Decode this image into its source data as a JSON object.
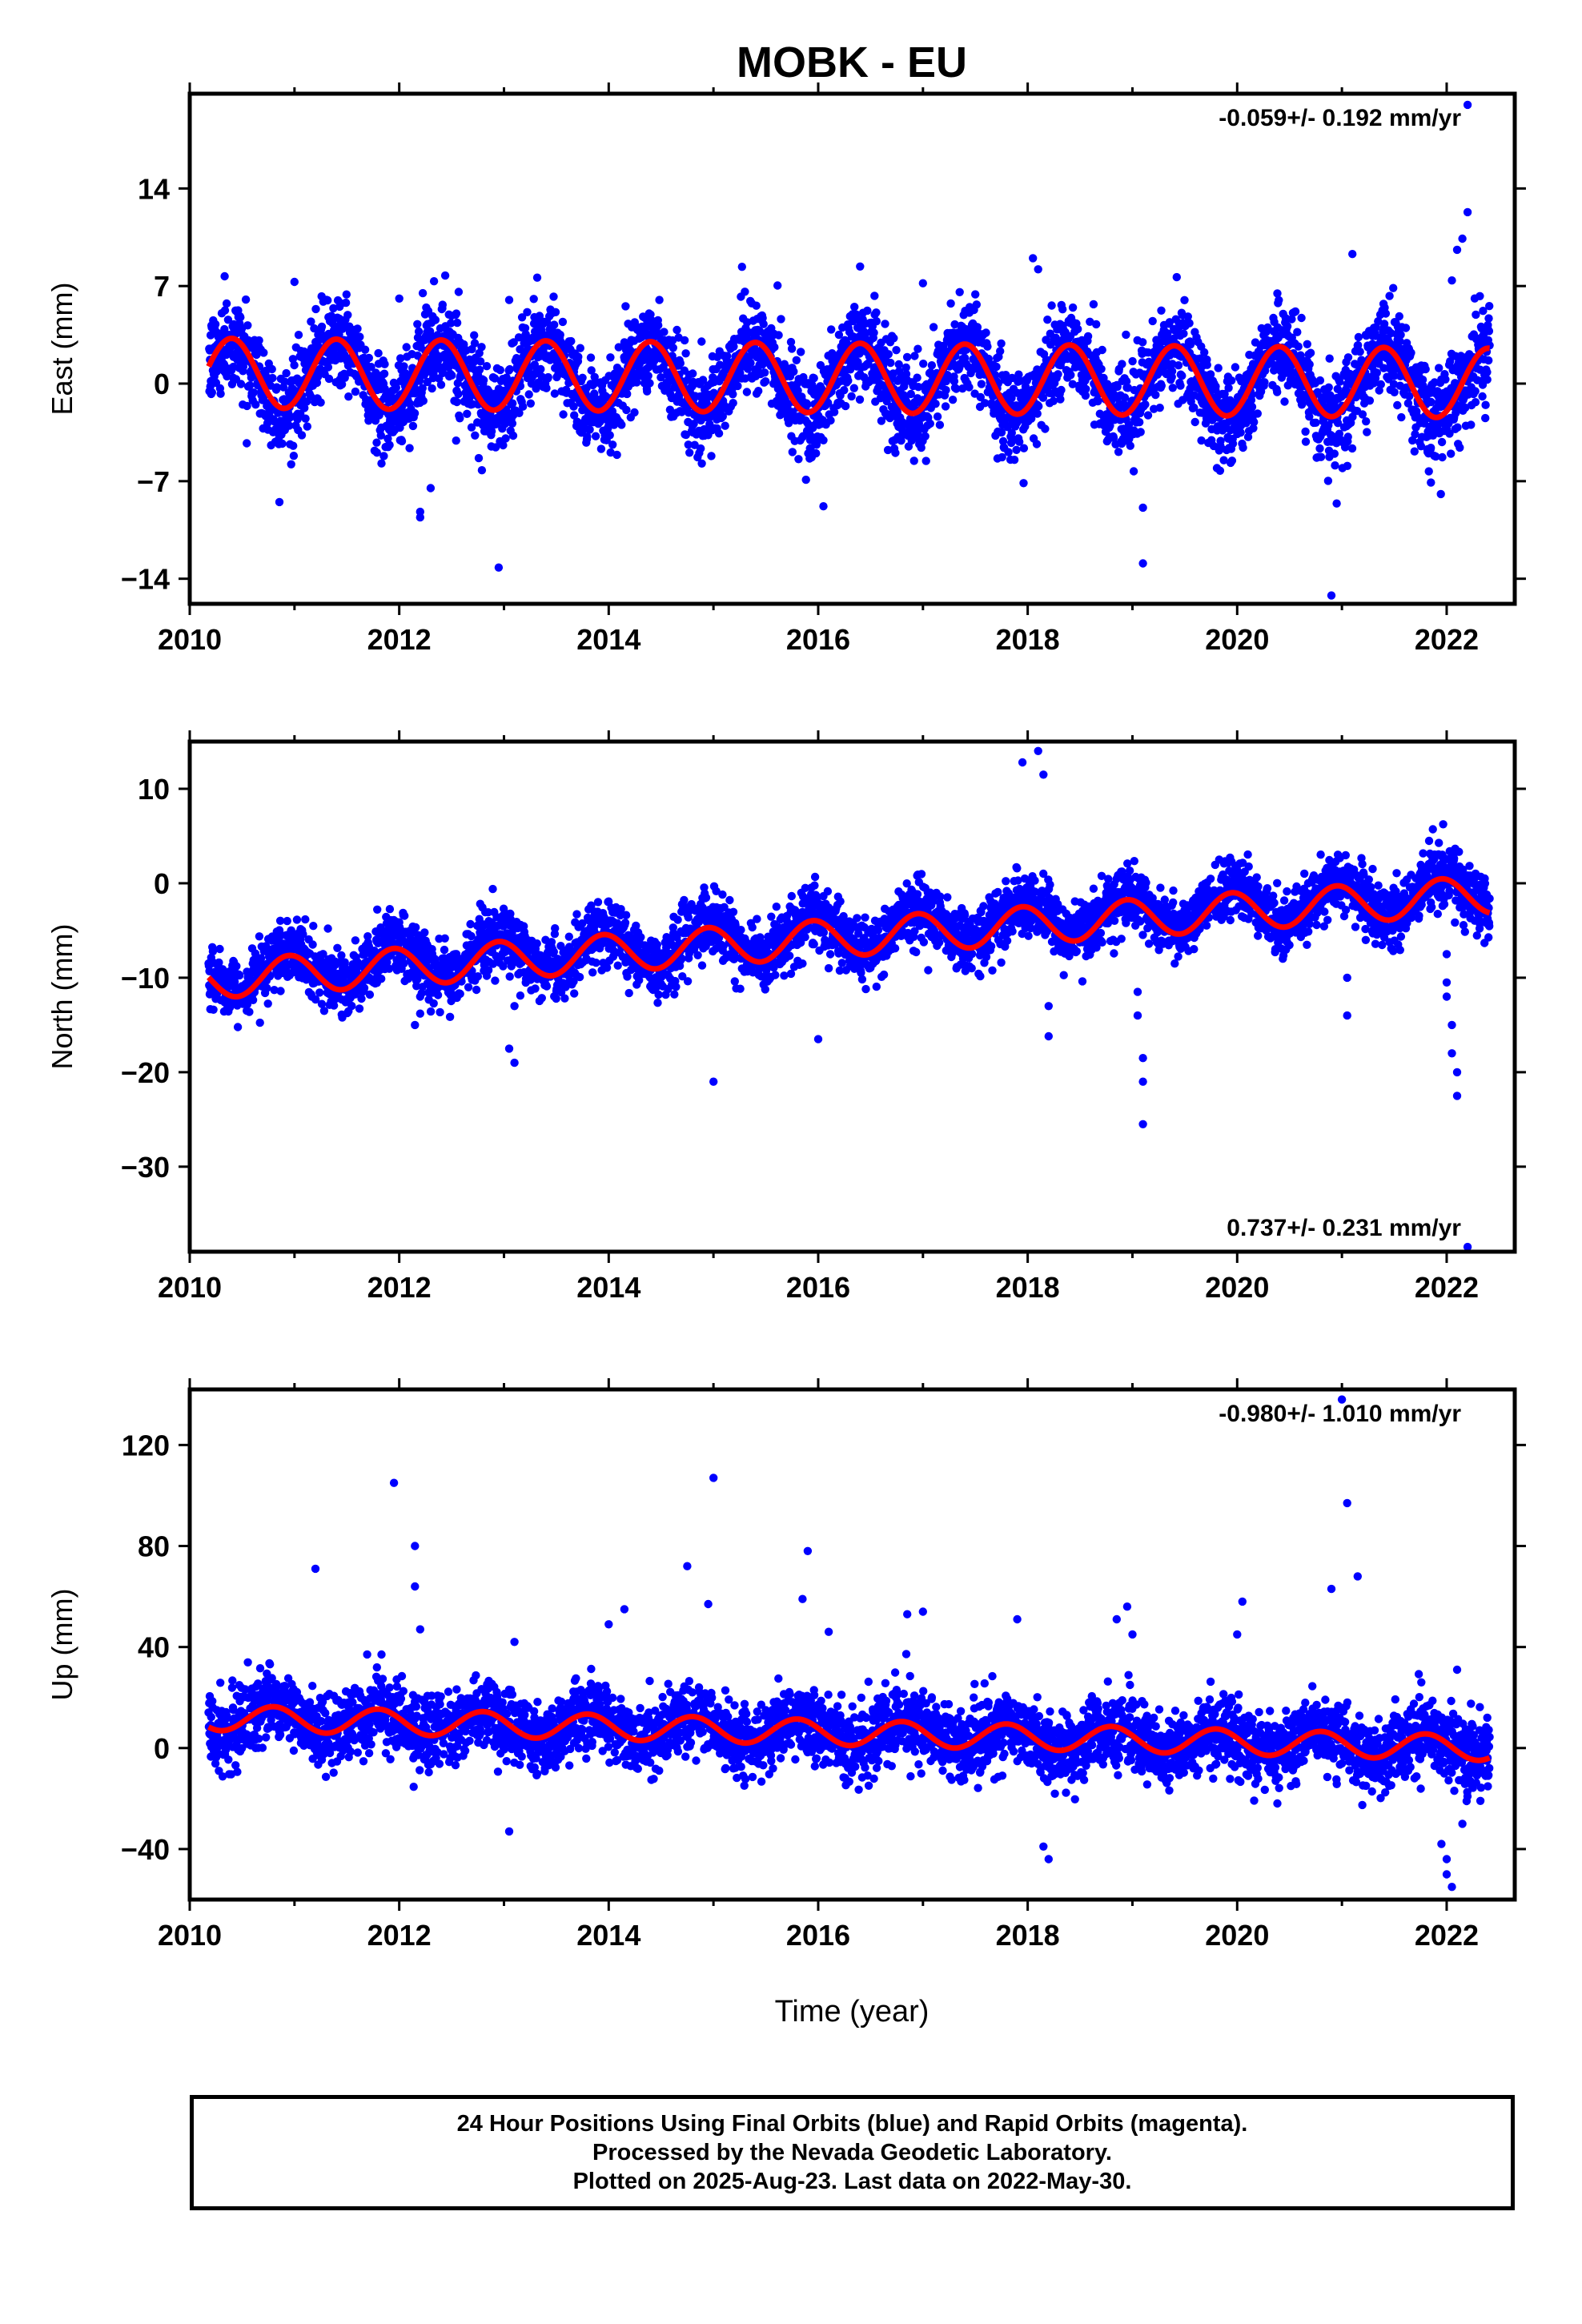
{
  "title": "MOBK - EU",
  "xlabel": "Time (year)",
  "colors": {
    "final_orbits": "#0000ff",
    "model_fit": "#ff0000",
    "axes": "#000000"
  },
  "footer": {
    "line1": "24 Hour Positions Using Final Orbits (blue) and Rapid Orbits (magenta).",
    "line2": "Processed by the Nevada Geodetic Laboratory.",
    "line3": "Plotted on 2025-Aug-23. Last data on 2022-May-30."
  },
  "chart_data": [
    {
      "type": "scatter",
      "name": "east",
      "ylabel": "East (mm)",
      "rate_label": "-0.059+/- 0.192 mm/yr",
      "rate_position": "top-right",
      "xlim": [
        2010.0,
        2022.65
      ],
      "ylim": [
        -15.8,
        20.8
      ],
      "yticks": [
        -14,
        -7,
        0,
        7,
        14
      ],
      "xticks": [
        2010,
        2012,
        2014,
        2016,
        2018,
        2020,
        2022
      ],
      "series": [
        {
          "name": "final_orbits",
          "kind": "points",
          "x_range": [
            2010.18,
            2022.41
          ],
          "mean": 0.3,
          "trend": -0.059,
          "seasonal_amp": 2.5,
          "seasonal_phase": 0.15,
          "noise": 1.6
        },
        {
          "name": "fit",
          "kind": "line",
          "x_range": [
            2010.18,
            2022.41
          ],
          "offset": 0.4,
          "trend": -0.059,
          "seasonal_amp": 2.5,
          "seasonal_phase": 0.15
        }
      ],
      "outliers": [
        {
          "x": 2012.2,
          "y": -9.6
        },
        {
          "x": 2012.2,
          "y": -9.2
        },
        {
          "x": 2012.3,
          "y": -7.5
        },
        {
          "x": 2012.95,
          "y": -13.2
        },
        {
          "x": 2013.05,
          "y": 6.0
        },
        {
          "x": 2012.0,
          "y": 6.1
        },
        {
          "x": 2011.0,
          "y": 7.3
        },
        {
          "x": 2016.05,
          "y": -8.8
        },
        {
          "x": 2016.4,
          "y": 8.4
        },
        {
          "x": 2018.05,
          "y": 9.0
        },
        {
          "x": 2018.1,
          "y": 8.2
        },
        {
          "x": 2019.1,
          "y": -12.9
        },
        {
          "x": 2019.1,
          "y": -8.9
        },
        {
          "x": 2020.9,
          "y": -15.2
        },
        {
          "x": 2020.95,
          "y": -8.6
        },
        {
          "x": 2021.1,
          "y": 9.3
        },
        {
          "x": 2022.2,
          "y": 20.0
        },
        {
          "x": 2022.2,
          "y": 12.3
        },
        {
          "x": 2022.15,
          "y": 10.4
        },
        {
          "x": 2022.1,
          "y": 9.6
        },
        {
          "x": 2022.05,
          "y": 7.4
        },
        {
          "x": 2021.85,
          "y": -7.1
        },
        {
          "x": 2017.0,
          "y": 7.2
        },
        {
          "x": 2017.5,
          "y": 6.4
        }
      ]
    },
    {
      "type": "scatter",
      "name": "north",
      "ylabel": "North (mm)",
      "rate_label": "0.737+/- 0.231 mm/yr",
      "rate_position": "bottom-right",
      "xlim": [
        2010.0,
        2022.65
      ],
      "ylim": [
        -39.0,
        15.0
      ],
      "yticks": [
        -30,
        -20,
        -10,
        0,
        10
      ],
      "xticks": [
        2010,
        2012,
        2014,
        2016,
        2018,
        2020,
        2022
      ],
      "series": [
        {
          "name": "final_orbits",
          "kind": "points",
          "x_range": [
            2010.18,
            2022.41
          ],
          "mean": -5.2,
          "trend": 0.737,
          "seasonal_amp": 2.0,
          "seasonal_phase": 0.7,
          "noise": 1.6
        },
        {
          "name": "fit",
          "kind": "line",
          "x_range": [
            2010.18,
            2022.41
          ],
          "offset": -5.7,
          "trend": 0.737,
          "seasonal_amp": 2.0,
          "seasonal_phase": 0.7
        }
      ],
      "outliers": [
        {
          "x": 2011.35,
          "y": -12.5
        },
        {
          "x": 2011.4,
          "y": -11.2
        },
        {
          "x": 2012.15,
          "y": -15.0
        },
        {
          "x": 2012.2,
          "y": -13.8
        },
        {
          "x": 2012.2,
          "y": -12.0
        },
        {
          "x": 2013.05,
          "y": -17.5
        },
        {
          "x": 2013.1,
          "y": -19.0
        },
        {
          "x": 2013.1,
          "y": -13.0
        },
        {
          "x": 2015.0,
          "y": -21.0
        },
        {
          "x": 2015.85,
          "y": -8.5
        },
        {
          "x": 2016.0,
          "y": -16.5
        },
        {
          "x": 2016.1,
          "y": -9.0
        },
        {
          "x": 2017.05,
          "y": -9.2
        },
        {
          "x": 2017.95,
          "y": 12.8
        },
        {
          "x": 2018.1,
          "y": 14.0
        },
        {
          "x": 2018.15,
          "y": 11.5
        },
        {
          "x": 2018.2,
          "y": -16.2
        },
        {
          "x": 2018.2,
          "y": -13.0
        },
        {
          "x": 2019.1,
          "y": -21.0
        },
        {
          "x": 2019.1,
          "y": -25.5
        },
        {
          "x": 2019.1,
          "y": -18.5
        },
        {
          "x": 2019.05,
          "y": -14.0
        },
        {
          "x": 2019.05,
          "y": -11.5
        },
        {
          "x": 2021.05,
          "y": -14.0
        },
        {
          "x": 2021.05,
          "y": -10.0
        },
        {
          "x": 2022.1,
          "y": -22.5
        },
        {
          "x": 2022.1,
          "y": -20.0
        },
        {
          "x": 2022.05,
          "y": -18.0
        },
        {
          "x": 2022.05,
          "y": -15.0
        },
        {
          "x": 2022.0,
          "y": -12.0
        },
        {
          "x": 2022.0,
          "y": -10.5
        },
        {
          "x": 2022.0,
          "y": -7.5
        },
        {
          "x": 2022.2,
          "y": -38.5
        }
      ]
    },
    {
      "type": "scatter",
      "name": "up",
      "ylabel": "Up (mm)",
      "rate_label": "-0.980+/- 1.010 mm/yr",
      "rate_position": "top-right",
      "xlim": [
        2010.0,
        2022.65
      ],
      "ylim": [
        -60.0,
        142.0
      ],
      "yticks": [
        -40,
        0,
        40,
        80,
        120
      ],
      "xticks": [
        2010,
        2012,
        2014,
        2016,
        2018,
        2020,
        2022
      ],
      "xlabel": "Time (year)",
      "series": [
        {
          "name": "final_orbits",
          "kind": "points",
          "x_range": [
            2010.18,
            2022.41
          ],
          "mean": 6.0,
          "trend": -0.98,
          "seasonal_amp": 5.0,
          "seasonal_phase": 0.55,
          "noise": 7.0
        },
        {
          "name": "fit",
          "kind": "line",
          "x_range": [
            2010.18,
            2022.41
          ],
          "offset": 6.0,
          "trend": -0.98,
          "seasonal_amp": 5.0,
          "seasonal_phase": 0.55
        }
      ],
      "outliers": [
        {
          "x": 2011.2,
          "y": 71
        },
        {
          "x": 2011.95,
          "y": 105
        },
        {
          "x": 2012.15,
          "y": 80
        },
        {
          "x": 2012.15,
          "y": 64
        },
        {
          "x": 2012.2,
          "y": 47
        },
        {
          "x": 2013.1,
          "y": 42
        },
        {
          "x": 2013.05,
          "y": -33
        },
        {
          "x": 2014.15,
          "y": 55
        },
        {
          "x": 2014.0,
          "y": 49
        },
        {
          "x": 2014.75,
          "y": 72
        },
        {
          "x": 2015.0,
          "y": 107
        },
        {
          "x": 2014.95,
          "y": 57
        },
        {
          "x": 2015.9,
          "y": 78
        },
        {
          "x": 2015.85,
          "y": 59
        },
        {
          "x": 2016.1,
          "y": 46
        },
        {
          "x": 2016.85,
          "y": 53
        },
        {
          "x": 2017.0,
          "y": 54
        },
        {
          "x": 2017.9,
          "y": 51
        },
        {
          "x": 2018.2,
          "y": -44
        },
        {
          "x": 2018.15,
          "y": -39
        },
        {
          "x": 2018.95,
          "y": 56
        },
        {
          "x": 2018.85,
          "y": 51
        },
        {
          "x": 2019.0,
          "y": 45
        },
        {
          "x": 2020.05,
          "y": 58
        },
        {
          "x": 2020.0,
          "y": 45
        },
        {
          "x": 2020.9,
          "y": 63
        },
        {
          "x": 2021.05,
          "y": 97
        },
        {
          "x": 2021.15,
          "y": 68
        },
        {
          "x": 2021.0,
          "y": 138
        },
        {
          "x": 2022.1,
          "y": 31
        },
        {
          "x": 2022.05,
          "y": -55
        },
        {
          "x": 2022.0,
          "y": -50
        },
        {
          "x": 2022.0,
          "y": -44
        },
        {
          "x": 2021.95,
          "y": -38
        },
        {
          "x": 2022.15,
          "y": -30
        }
      ]
    }
  ]
}
